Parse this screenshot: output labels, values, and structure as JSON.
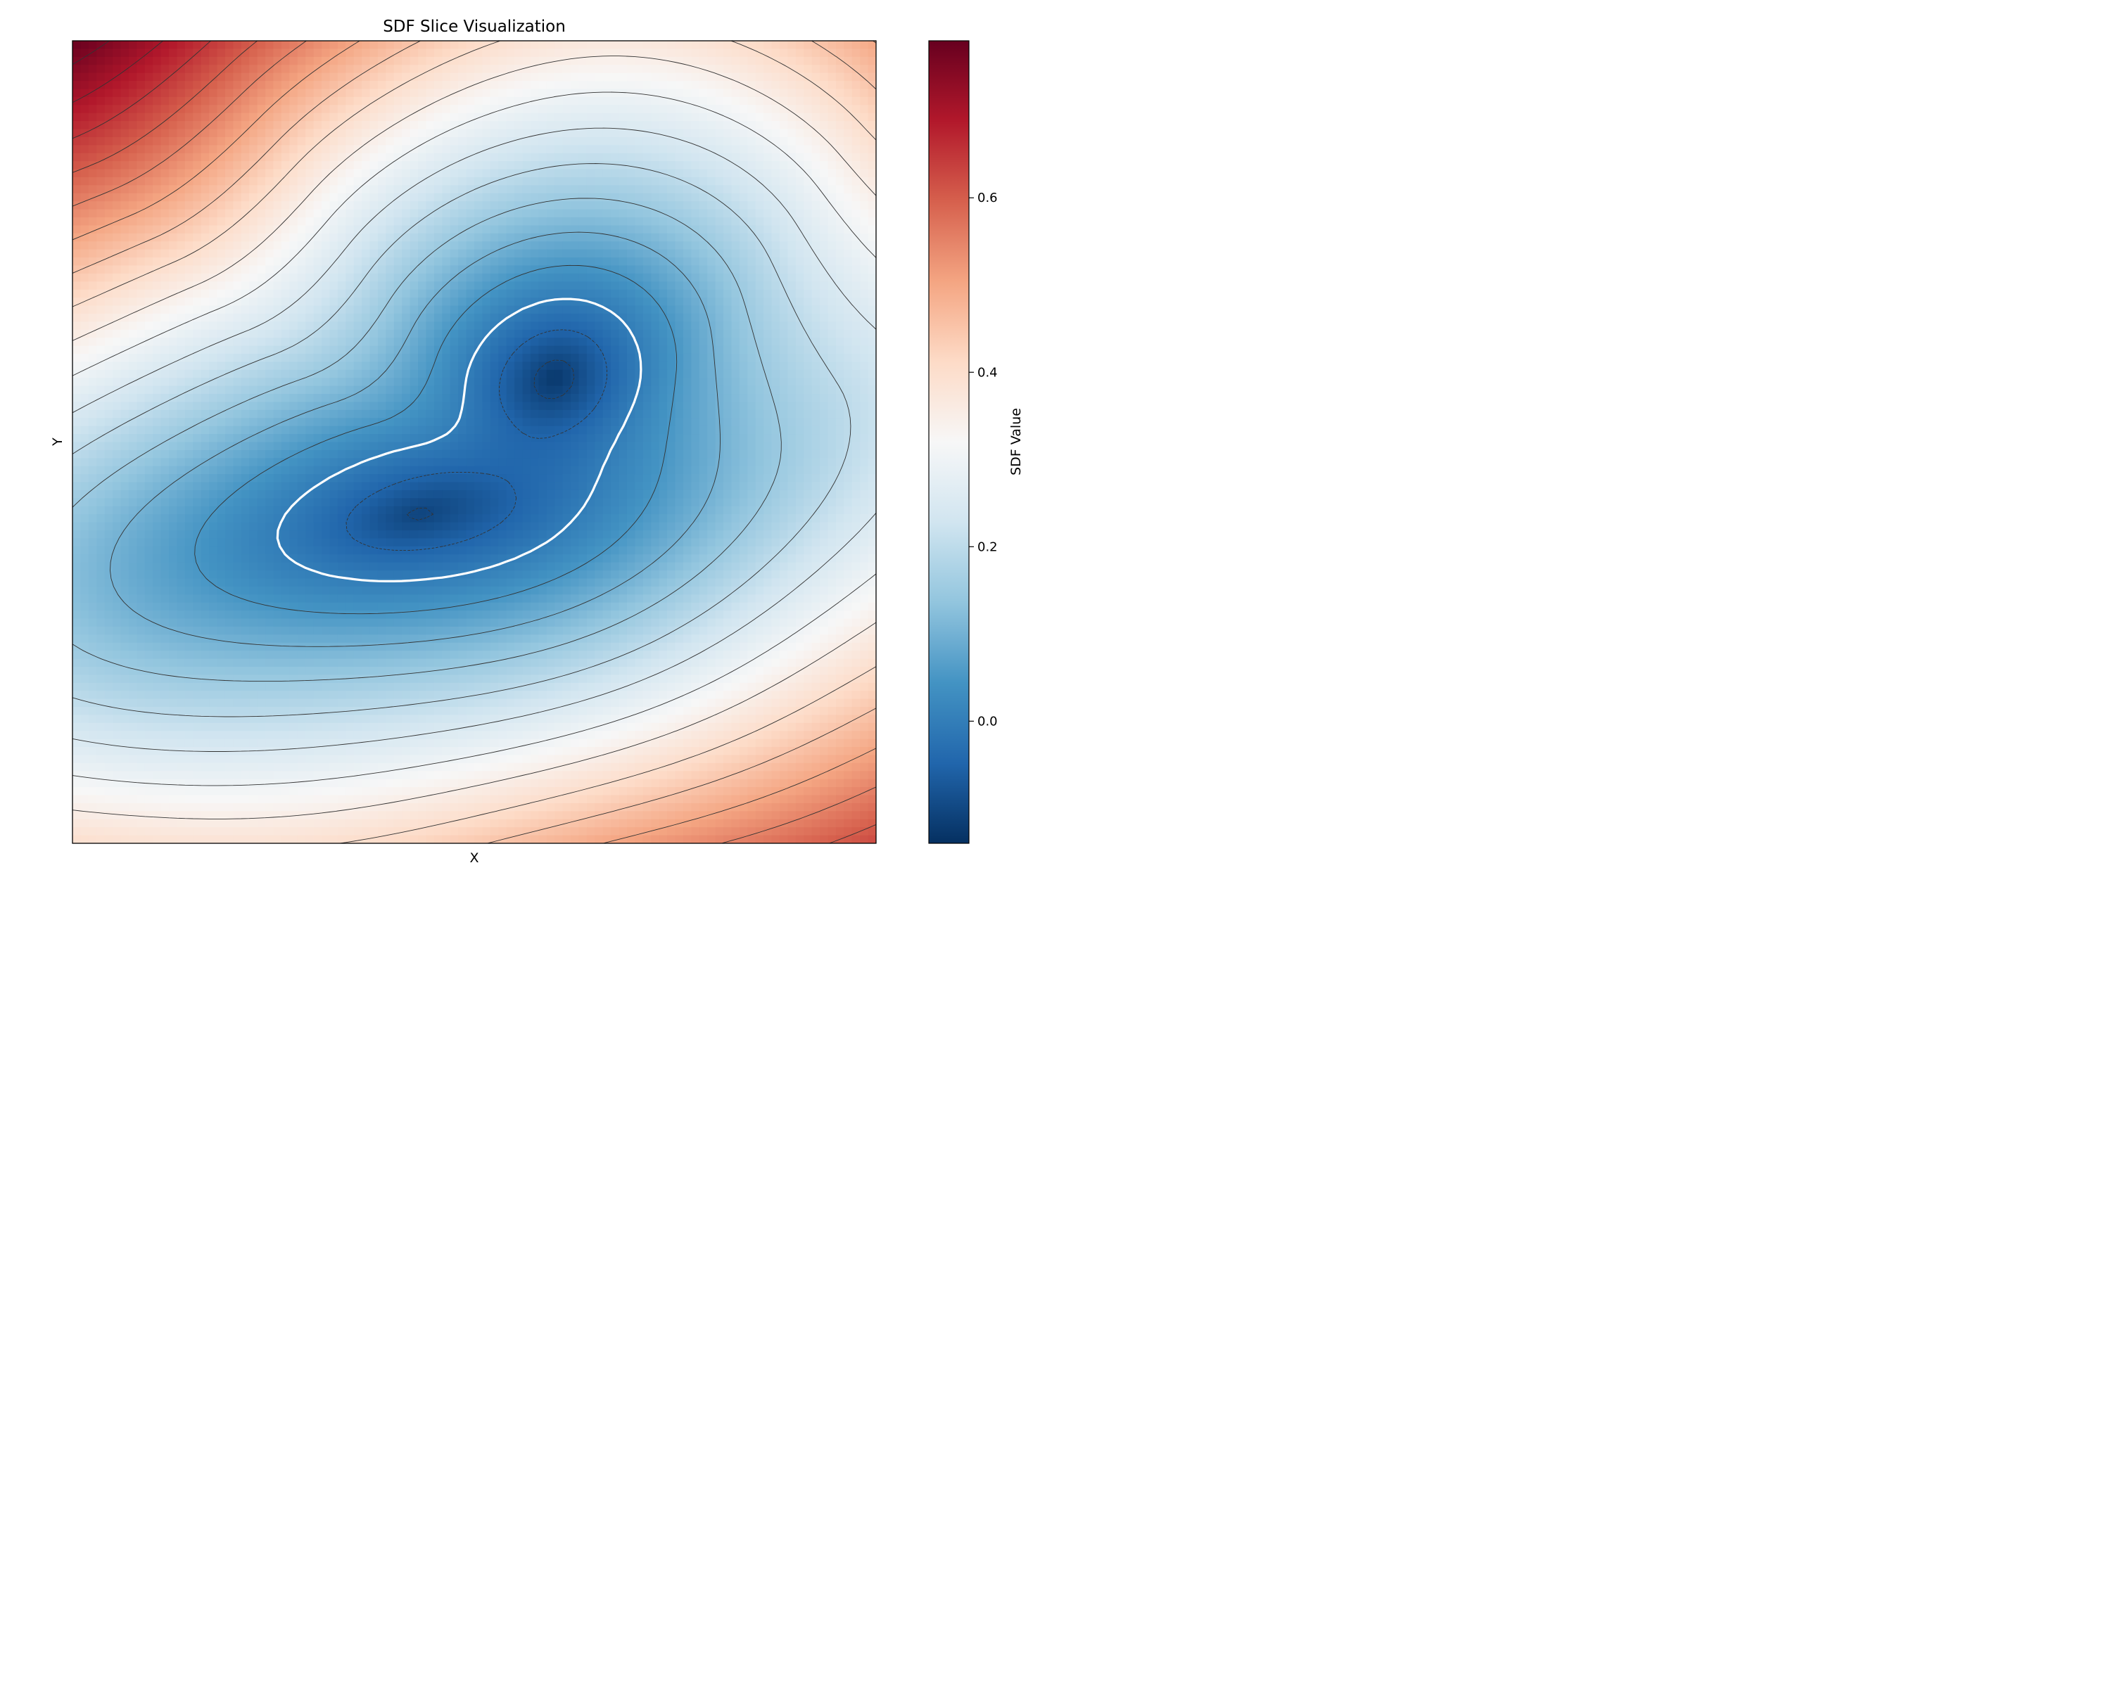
{
  "chart_data": {
    "type": "heatmap",
    "title": "SDF Slice Visualization",
    "xlabel": "X",
    "ylabel": "Y",
    "colorbar": {
      "label": "SDF Value",
      "colormap": "RdBu_r",
      "range": [
        -0.14,
        0.78
      ],
      "ticks": [
        {
          "value": 0.0,
          "label": "0.0"
        },
        {
          "value": 0.2,
          "label": "0.2"
        },
        {
          "value": 0.4,
          "label": "0.4"
        },
        {
          "value": 0.6,
          "label": "0.6"
        }
      ]
    },
    "grid_resolution": [
      100,
      100
    ],
    "field_model": {
      "description_units": "normalized slice coords u,v in [0,1], v up",
      "blobs": [
        {
          "u": 0.43,
          "v": 0.41,
          "rx": 0.2,
          "ry": 0.085,
          "angle_deg": 12
        },
        {
          "u": 0.6,
          "v": 0.58,
          "rx": 0.12,
          "ry": 0.1,
          "angle_deg": 40
        }
      ],
      "min_value": -0.13,
      "max_value": 0.78
    },
    "contours": {
      "zero_level": 0.0,
      "zero_color": "#ffffff",
      "negative_levels": [
        -0.1,
        -0.05
      ],
      "positive_step": 0.05,
      "line_color": "#333333"
    }
  }
}
